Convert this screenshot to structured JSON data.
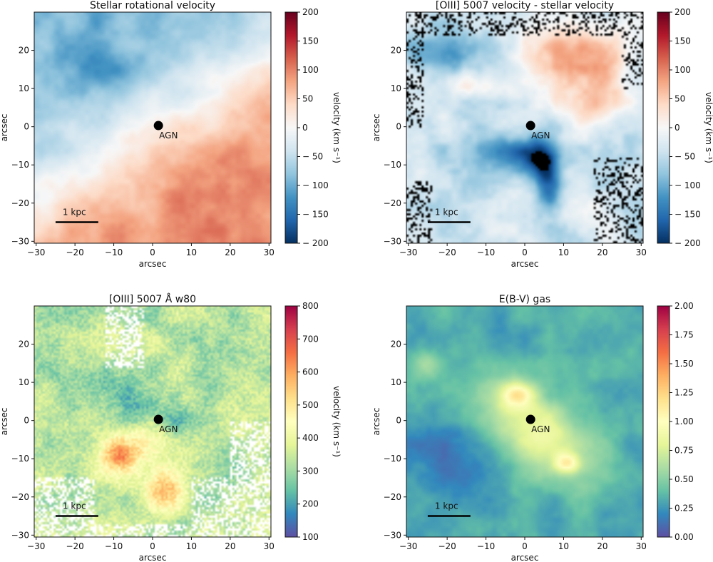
{
  "chart_data": [
    {
      "type": "heatmap",
      "title": "Stellar rotational velocity",
      "xlabel": "arcsec",
      "ylabel": "arcsec",
      "xlim": [
        -30.5,
        30.5
      ],
      "ylim": [
        -30.5,
        30
      ],
      "xticks": [
        -30,
        -20,
        -10,
        0,
        10,
        20,
        30
      ],
      "yticks": [
        -30,
        -20,
        -10,
        0,
        10,
        20
      ],
      "colormap": "RdBu_r",
      "colorbar": {
        "label": "velocity (km s⁻¹)",
        "min": -200,
        "max": 200,
        "ticks": [
          200,
          150,
          100,
          50,
          0,
          -50,
          -100,
          -150,
          -200
        ]
      },
      "agn": {
        "label": "AGN",
        "x": 1.5,
        "y": 0.3
      },
      "scalebar": {
        "label": "1 kpc",
        "x_start": -25,
        "x_end": -14,
        "y": -25
      }
    },
    {
      "type": "heatmap",
      "title": "[OIII] 5007 velocity - stellar velocity",
      "xlabel": "arcsec",
      "ylabel": "arcsec",
      "xlim": [
        -30.5,
        30.5
      ],
      "ylim": [
        -30.5,
        30
      ],
      "xticks": [
        -30,
        -20,
        -10,
        0,
        10,
        20,
        30
      ],
      "yticks": [
        -30,
        -20,
        -10,
        0,
        10,
        20
      ],
      "colormap": "RdBu_r",
      "colorbar": {
        "label": "velocity (km s⁻¹)",
        "min": -200,
        "max": 200,
        "ticks": [
          200,
          150,
          100,
          50,
          0,
          -50,
          -100,
          -150,
          -200
        ]
      },
      "agn": {
        "label": "AGN",
        "x": 1.5,
        "y": 0.3
      },
      "scalebar": {
        "label": "1 kpc",
        "x_start": -25,
        "x_end": -14,
        "y": -25
      }
    },
    {
      "type": "heatmap",
      "title": "[OIII] 5007 Å w80",
      "xlabel": "arcsec",
      "ylabel": "arcsec",
      "xlim": [
        -30.5,
        30.5
      ],
      "ylim": [
        -30.5,
        30
      ],
      "xticks": [
        -30,
        -20,
        -10,
        0,
        10,
        20,
        30
      ],
      "yticks": [
        -30,
        -20,
        -10,
        0,
        10,
        20
      ],
      "colormap": "Spectral_r",
      "colorbar": {
        "label": "velocity (km s⁻¹)",
        "min": 100,
        "max": 800,
        "ticks": [
          800,
          700,
          600,
          500,
          400,
          300,
          200,
          100
        ]
      },
      "agn": {
        "label": "AGN",
        "x": 1.5,
        "y": 0.3
      },
      "scalebar": {
        "label": "1 kpc",
        "x_start": -25,
        "x_end": -14,
        "y": -25
      }
    },
    {
      "type": "heatmap",
      "title": "E(B-V) gas",
      "xlabel": "arcsec",
      "ylabel": "arcsec",
      "xlim": [
        -30.5,
        30.5
      ],
      "ylim": [
        -30.5,
        30
      ],
      "xticks": [
        -30,
        -20,
        -10,
        0,
        10,
        20,
        30
      ],
      "yticks": [
        -30,
        -20,
        -10,
        0,
        10,
        20
      ],
      "colormap": "Spectral_r",
      "colorbar": {
        "label": "",
        "min": 0,
        "max": 2,
        "ticks": [
          "2.00",
          "1.75",
          "1.50",
          "1.25",
          "1.00",
          "0.75",
          "0.50",
          "0.25",
          "0.00"
        ]
      },
      "agn": {
        "label": "AGN",
        "x": 1.5,
        "y": 0.3
      },
      "scalebar": {
        "label": "1 kpc",
        "x_start": -25,
        "x_end": -14,
        "y": -25
      }
    }
  ]
}
